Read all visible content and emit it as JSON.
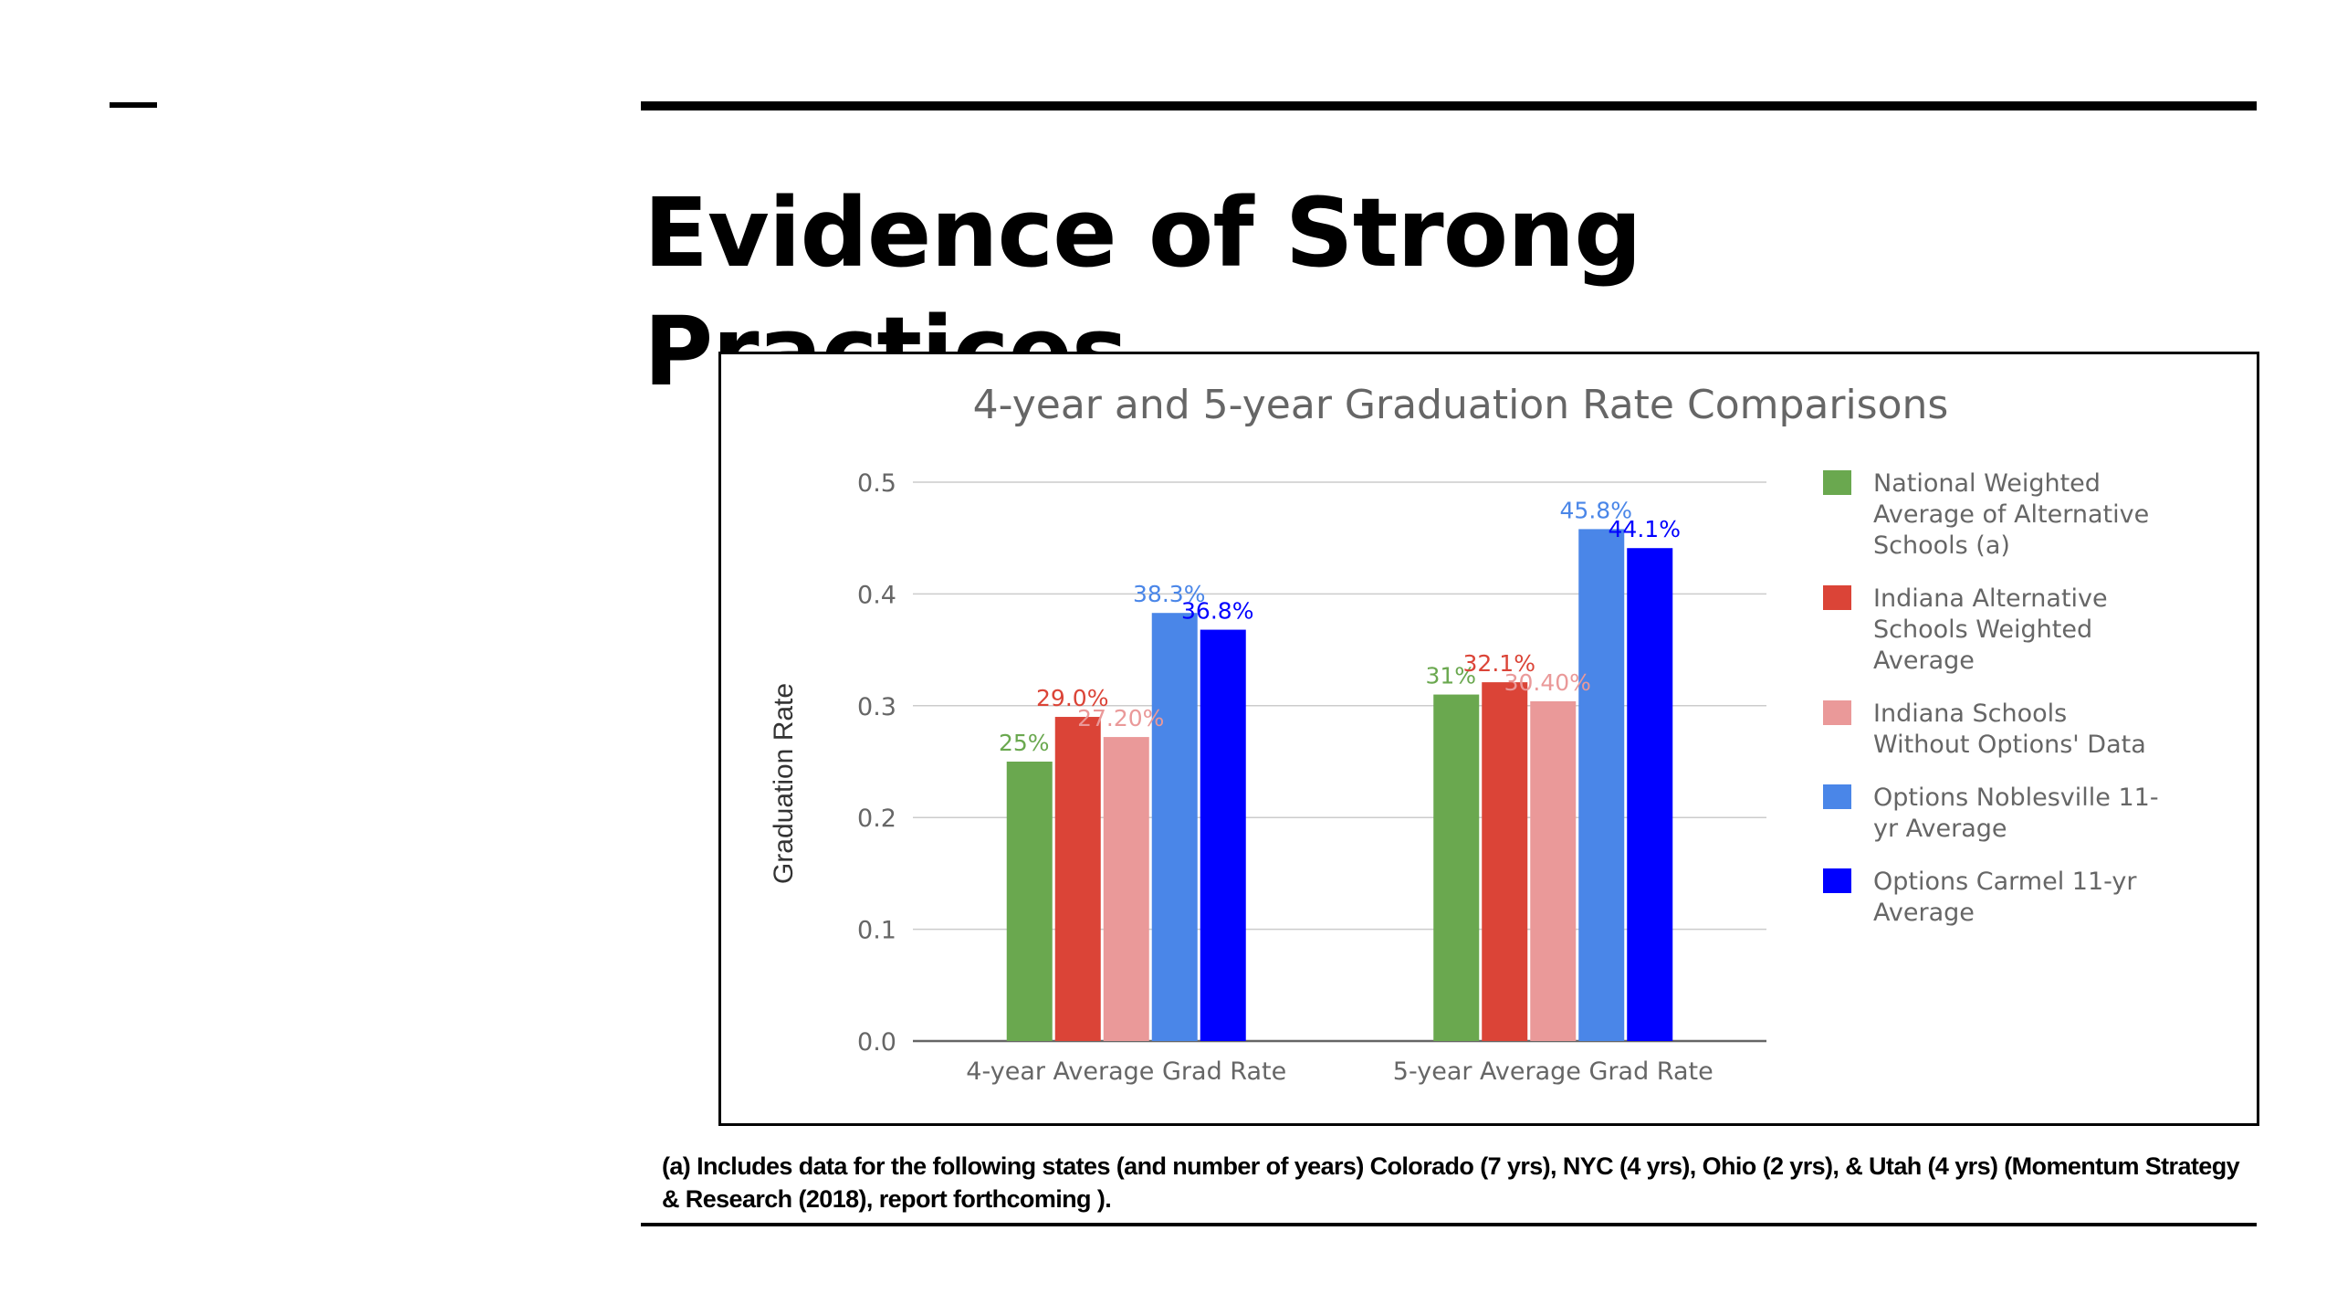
{
  "slide": {
    "dash": "—",
    "title": "Evidence of Strong Practices",
    "footnote": "(a) Includes data for the following states (and number of years) Colorado (7 yrs), NYC (4 yrs), Ohio (2 yrs), & Utah (4 yrs) (Momentum Strategy & Research (2018), report forthcoming )."
  },
  "chart_data": {
    "type": "bar",
    "title": "4-year and 5-year Graduation Rate Comparisons",
    "xlabel": "",
    "ylabel": "Graduation Rate",
    "ylim": [
      0,
      0.5
    ],
    "yticks": [
      "0.0",
      "0.1",
      "0.2",
      "0.3",
      "0.4",
      "0.5"
    ],
    "grid": true,
    "legend_position": "right",
    "categories": [
      "4-year Average Grad Rate",
      "5-year Average Grad Rate"
    ],
    "series": [
      {
        "name": "National Weighted Average of Alternative Schools (a)",
        "legend_lines": [
          "National Weighted",
          "Average of Alternative",
          "Schools (a)"
        ],
        "color": "#6aa84f",
        "values": [
          0.25,
          0.31
        ],
        "labels": [
          "25%",
          "31%"
        ]
      },
      {
        "name": "Indiana Alternative Schools Weighted Average",
        "legend_lines": [
          "Indiana Alternative",
          "Schools Weighted",
          "Average"
        ],
        "color": "#db4437",
        "values": [
          0.29,
          0.321
        ],
        "labels": [
          "29.0%",
          "32.1%"
        ]
      },
      {
        "name": "Indiana Schools Without Options' Data",
        "legend_lines": [
          "Indiana Schools",
          "Without Options' Data"
        ],
        "color": "#ea9999",
        "values": [
          0.272,
          0.304
        ],
        "labels": [
          "27.20%",
          "30.40%"
        ]
      },
      {
        "name": "Options Noblesville 11-yr Average",
        "legend_lines": [
          "Options Noblesville 11-",
          "yr Average"
        ],
        "color": "#4a86e8",
        "values": [
          0.383,
          0.458
        ],
        "labels": [
          "38.3%",
          "45.8%"
        ]
      },
      {
        "name": "Options Carmel 11-yr Average",
        "legend_lines": [
          "Options Carmel 11-yr",
          "Average"
        ],
        "color": "#0000ff",
        "values": [
          0.368,
          0.441
        ],
        "labels": [
          "36.8%",
          "44.1%"
        ]
      }
    ]
  }
}
